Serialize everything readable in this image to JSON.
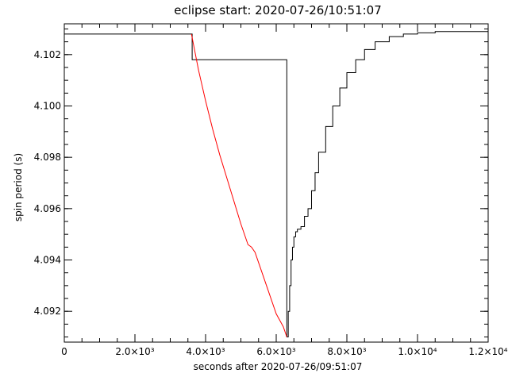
{
  "chart_data": {
    "type": "line",
    "title": "eclipse start: 2020-07-26/10:51:07",
    "xlabel": "seconds after 2020-07-26/09:51:07",
    "ylabel": "spin period (s)",
    "xlim": [
      0,
      12000
    ],
    "ylim": [
      4.0908,
      4.1032
    ],
    "grid": false,
    "x_ticks": [
      {
        "value": 0,
        "label": "0"
      },
      {
        "value": 2000,
        "label": "2.0×10³"
      },
      {
        "value": 4000,
        "label": "4.0×10³"
      },
      {
        "value": 6000,
        "label": "6.0×10³"
      },
      {
        "value": 8000,
        "label": "8.0×10³"
      },
      {
        "value": 10000,
        "label": "1.0×10⁴"
      },
      {
        "value": 12000,
        "label": "1.2×10⁴"
      }
    ],
    "y_ticks": [
      {
        "value": 4.092,
        "label": "4.092"
      },
      {
        "value": 4.094,
        "label": "4.094"
      },
      {
        "value": 4.096,
        "label": "4.096"
      },
      {
        "value": 4.098,
        "label": "4.098"
      },
      {
        "value": 4.1,
        "label": "4.100"
      },
      {
        "value": 4.102,
        "label": "4.102"
      }
    ],
    "series": [
      {
        "color": "#000000",
        "style": "step",
        "x": [
          0,
          3600,
          3600,
          3620,
          3620,
          6300,
          6300,
          6340,
          6380,
          6420,
          6460,
          6500,
          6550,
          6600,
          6700,
          6800,
          6900,
          7000,
          7100,
          7200,
          7400,
          7600,
          7800,
          8000,
          8250,
          8500,
          8800,
          9200,
          9600,
          10000,
          10500,
          11000,
          11500,
          12000
        ],
        "y": [
          4.1028,
          4.1028,
          4.1028,
          4.1018,
          4.1018,
          4.1018,
          4.091,
          4.092,
          4.093,
          4.094,
          4.0945,
          4.0949,
          4.0951,
          4.0952,
          4.0953,
          4.0957,
          4.096,
          4.0967,
          4.0974,
          4.0982,
          4.0992,
          4.1,
          4.1007,
          4.1013,
          4.1018,
          4.1022,
          4.1025,
          4.1027,
          4.1028,
          4.10285,
          4.1029,
          4.1029,
          4.1029,
          4.1029
        ]
      },
      {
        "color": "#ff0000",
        "style": "line",
        "x": [
          3600,
          3800,
          4000,
          4200,
          4400,
          4600,
          4800,
          5000,
          5200,
          5300,
          5400,
          5600,
          5800,
          6000,
          6200,
          6300
        ],
        "y": [
          4.1028,
          4.1014,
          4.1002,
          4.0991,
          4.0981,
          4.0972,
          4.0963,
          4.0954,
          4.0946,
          4.0945,
          4.0943,
          4.0935,
          4.0927,
          4.0919,
          4.0914,
          4.091
        ]
      }
    ]
  }
}
